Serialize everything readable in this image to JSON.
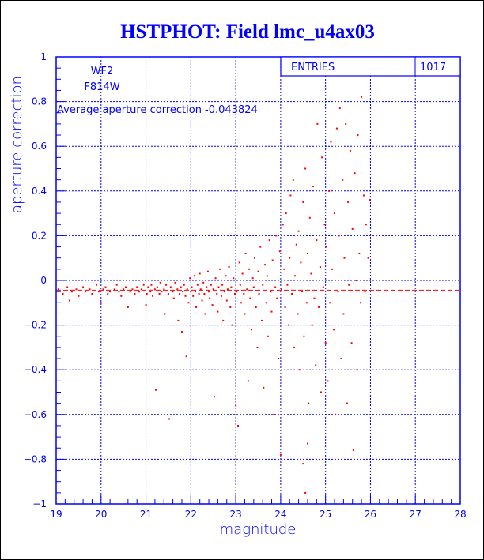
{
  "chart_data": {
    "type": "scatter",
    "title": "HSTPHOT: Field lmc_u4ax03",
    "xlabel": "magnitude",
    "ylabel": "aperture correction",
    "xlim": [
      19,
      28
    ],
    "ylim": [
      -1,
      1
    ],
    "grid": true,
    "x_ticks": [
      "19",
      "20",
      "21",
      "22",
      "23",
      "24",
      "25",
      "26",
      "27",
      "28"
    ],
    "y_ticks": [
      "-1",
      "-0.8",
      "-0.6",
      "-0.4",
      "-0.2",
      "0",
      "0.2",
      "0.4",
      "0.6",
      "0.8",
      "1"
    ],
    "stats_box": {
      "label": "ENTRIES",
      "value": "1017"
    },
    "annotations": {
      "camera": "WF2",
      "filter": "F814W",
      "average_text": "Average aperture correction -0.043824"
    },
    "average": -0.043824,
    "colors": {
      "axes": "#0000ff",
      "points": "#ff0000",
      "average_line": "#ff0000"
    },
    "points": [
      [
        19.05,
        -0.04
      ],
      [
        19.15,
        -0.06
      ],
      [
        19.25,
        -0.03
      ],
      [
        19.3,
        -0.09
      ],
      [
        19.35,
        -0.05
      ],
      [
        19.45,
        -0.04
      ],
      [
        19.5,
        -0.07
      ],
      [
        19.6,
        -0.03
      ],
      [
        19.65,
        -0.05
      ],
      [
        19.75,
        -0.04
      ],
      [
        19.8,
        -0.06
      ],
      [
        19.9,
        -0.02
      ],
      [
        19.95,
        -0.05
      ],
      [
        20.0,
        -0.1
      ],
      [
        20.05,
        -0.04
      ],
      [
        20.1,
        -0.03
      ],
      [
        20.15,
        -0.06
      ],
      [
        20.2,
        -0.05
      ],
      [
        20.3,
        -0.04
      ],
      [
        20.35,
        -0.02
      ],
      [
        20.4,
        -0.05
      ],
      [
        20.45,
        -0.07
      ],
      [
        20.5,
        -0.04
      ],
      [
        20.55,
        -0.03
      ],
      [
        20.6,
        -0.12
      ],
      [
        20.65,
        -0.05
      ],
      [
        20.7,
        -0.04
      ],
      [
        20.75,
        -0.06
      ],
      [
        20.8,
        -0.03
      ],
      [
        20.85,
        -0.05
      ],
      [
        20.9,
        -0.04
      ],
      [
        20.95,
        -0.02
      ],
      [
        21.0,
        -0.11
      ],
      [
        21.02,
        -0.06
      ],
      [
        21.05,
        -0.03
      ],
      [
        21.1,
        -0.05
      ],
      [
        21.12,
        -0.02
      ],
      [
        21.15,
        -0.07
      ],
      [
        21.2,
        -0.04
      ],
      [
        21.22,
        -0.49
      ],
      [
        21.25,
        -0.03
      ],
      [
        21.3,
        -0.06
      ],
      [
        21.32,
        -0.01
      ],
      [
        21.35,
        -0.05
      ],
      [
        21.4,
        -0.04
      ],
      [
        21.42,
        -0.15
      ],
      [
        21.45,
        -0.02
      ],
      [
        21.5,
        -0.06
      ],
      [
        21.52,
        -0.62
      ],
      [
        21.55,
        -0.03
      ],
      [
        21.6,
        -0.05
      ],
      [
        21.62,
        -0.08
      ],
      [
        21.65,
        -0.01
      ],
      [
        21.7,
        -0.04
      ],
      [
        21.72,
        -0.18
      ],
      [
        21.75,
        -0.06
      ],
      [
        21.78,
        -0.03
      ],
      [
        21.8,
        -0.23
      ],
      [
        21.82,
        -0.05
      ],
      [
        21.85,
        -0.02
      ],
      [
        21.88,
        -0.07
      ],
      [
        21.9,
        -0.34
      ],
      [
        21.92,
        -0.04
      ],
      [
        21.95,
        -0.1
      ],
      [
        21.98,
        0.01
      ],
      [
        22.0,
        -0.05
      ],
      [
        22.02,
        -0.03
      ],
      [
        22.05,
        -0.07
      ],
      [
        22.08,
        0.02
      ],
      [
        22.1,
        -0.05
      ],
      [
        22.12,
        -0.12
      ],
      [
        22.15,
        -0.02
      ],
      [
        22.18,
        -0.06
      ],
      [
        22.2,
        0.03
      ],
      [
        22.22,
        -0.04
      ],
      [
        22.25,
        -0.09
      ],
      [
        22.28,
        -0.01
      ],
      [
        22.3,
        -0.06
      ],
      [
        22.32,
        -0.15
      ],
      [
        22.35,
        -0.03
      ],
      [
        22.38,
        0.04
      ],
      [
        22.4,
        -0.05
      ],
      [
        22.42,
        -0.08
      ],
      [
        22.45,
        -0.02
      ],
      [
        22.48,
        -0.11
      ],
      [
        22.5,
        -0.04
      ],
      [
        22.52,
        -0.52
      ],
      [
        22.55,
        0.01
      ],
      [
        22.58,
        -0.06
      ],
      [
        22.6,
        -0.14
      ],
      [
        22.62,
        -0.03
      ],
      [
        22.65,
        0.05
      ],
      [
        22.68,
        -0.07
      ],
      [
        22.7,
        -0.02
      ],
      [
        22.72,
        -0.18
      ],
      [
        22.75,
        -0.05
      ],
      [
        22.78,
        0.02
      ],
      [
        22.8,
        -0.09
      ],
      [
        22.82,
        -0.04
      ],
      [
        22.85,
        0.06
      ],
      [
        22.88,
        -0.12
      ],
      [
        22.9,
        -0.03
      ],
      [
        22.92,
        -0.2
      ],
      [
        22.95,
        0.01
      ],
      [
        22.98,
        -0.06
      ],
      [
        23.0,
        -0.56
      ],
      [
        23.02,
        -0.05
      ],
      [
        23.05,
        -0.65
      ],
      [
        23.08,
        0.08
      ],
      [
        23.1,
        -0.02
      ],
      [
        23.12,
        -0.1
      ],
      [
        23.15,
        0.03
      ],
      [
        23.18,
        -0.06
      ],
      [
        23.2,
        -0.15
      ],
      [
        23.22,
        0.12
      ],
      [
        23.25,
        -0.04
      ],
      [
        23.28,
        -0.45
      ],
      [
        23.3,
        0.05
      ],
      [
        23.32,
        -0.08
      ],
      [
        23.35,
        -0.22
      ],
      [
        23.38,
        0.01
      ],
      [
        23.4,
        -0.03
      ],
      [
        23.42,
        0.1
      ],
      [
        23.45,
        -0.12
      ],
      [
        23.48,
        -0.3
      ],
      [
        23.5,
        0.04
      ],
      [
        23.52,
        -0.06
      ],
      [
        23.55,
        0.15
      ],
      [
        23.58,
        -0.18
      ],
      [
        23.6,
        -0.02
      ],
      [
        23.62,
        -0.48
      ],
      [
        23.65,
        0.07
      ],
      [
        23.68,
        -0.1
      ],
      [
        23.7,
        0.02
      ],
      [
        23.72,
        -0.25
      ],
      [
        23.75,
        0.18
      ],
      [
        23.78,
        -0.05
      ],
      [
        23.8,
        -0.14
      ],
      [
        23.82,
        0.09
      ],
      [
        23.85,
        -0.6
      ],
      [
        23.88,
        -0.03
      ],
      [
        23.9,
        0.2
      ],
      [
        23.92,
        -0.08
      ],
      [
        23.95,
        -0.35
      ],
      [
        23.98,
        0.13
      ],
      [
        24.0,
        -0.78
      ],
      [
        24.02,
        -0.04
      ],
      [
        24.05,
        0.25
      ],
      [
        24.08,
        0.05
      ],
      [
        24.1,
        -0.12
      ],
      [
        24.12,
        0.3
      ],
      [
        24.15,
        -0.02
      ],
      [
        24.18,
        -0.2
      ],
      [
        24.2,
        0.1
      ],
      [
        24.22,
        0.38
      ],
      [
        24.25,
        -0.06
      ],
      [
        24.28,
        0.45
      ],
      [
        24.3,
        -0.3
      ],
      [
        24.32,
        0.02
      ],
      [
        24.35,
        0.16
      ],
      [
        24.38,
        -0.15
      ],
      [
        24.4,
        0.22
      ],
      [
        24.42,
        -0.4
      ],
      [
        24.45,
        0.08
      ],
      [
        24.48,
        -0.05
      ],
      [
        24.5,
        0.35
      ],
      [
        24.52,
        -0.25
      ],
      [
        24.55,
        0.5
      ],
      [
        24.55,
        -0.95
      ],
      [
        24.58,
        -0.1
      ],
      [
        24.6,
        0.12
      ],
      [
        24.62,
        -0.55
      ],
      [
        24.65,
        0.28
      ],
      [
        24.68,
        0.03
      ],
      [
        24.7,
        -0.2
      ],
      [
        24.72,
        0.42
      ],
      [
        24.75,
        -0.08
      ],
      [
        24.78,
        -0.38
      ],
      [
        24.8,
        0.18
      ],
      [
        24.82,
        0.7
      ],
      [
        24.85,
        -0.12
      ],
      [
        24.88,
        0.06
      ],
      [
        24.9,
        -0.5
      ],
      [
        24.92,
        0.55
      ],
      [
        24.95,
        -0.03
      ],
      [
        24.98,
        0.25
      ],
      [
        25.0,
        -0.28
      ],
      [
        24.6,
        -0.73
      ],
      [
        24.5,
        -0.82
      ],
      [
        25.02,
        0.15
      ],
      [
        25.05,
        -0.45
      ],
      [
        25.08,
        0.4
      ],
      [
        25.1,
        -0.1
      ],
      [
        25.12,
        0.62
      ],
      [
        25.15,
        0.05
      ],
      [
        25.18,
        -0.22
      ],
      [
        25.2,
        0.3
      ],
      [
        25.22,
        -0.6
      ],
      [
        25.25,
        0.68
      ],
      [
        25.28,
        -0.05
      ],
      [
        25.3,
        0.2
      ],
      [
        25.32,
        0.77
      ],
      [
        25.35,
        -0.35
      ],
      [
        25.38,
        0.45
      ],
      [
        25.4,
        -0.15
      ],
      [
        25.42,
        0.1
      ],
      [
        25.45,
        0.7
      ],
      [
        25.48,
        -0.55
      ],
      [
        25.5,
        0.35
      ],
      [
        25.52,
        -0.02
      ],
      [
        25.55,
        0.58
      ],
      [
        25.58,
        -0.28
      ],
      [
        25.6,
        0.23
      ],
      [
        25.62,
        -0.76
      ],
      [
        25.65,
        0.48
      ],
      [
        25.68,
        0.0
      ],
      [
        25.7,
        -0.4
      ],
      [
        25.72,
        0.65
      ],
      [
        25.75,
        0.12
      ],
      [
        25.78,
        -0.1
      ],
      [
        25.8,
        0.82
      ],
      [
        25.85,
        0.38
      ],
      [
        25.88,
        -0.05
      ],
      [
        25.9,
        0.25
      ],
      [
        25.95,
        0.1
      ],
      [
        25.98,
        0.36
      ]
    ]
  }
}
